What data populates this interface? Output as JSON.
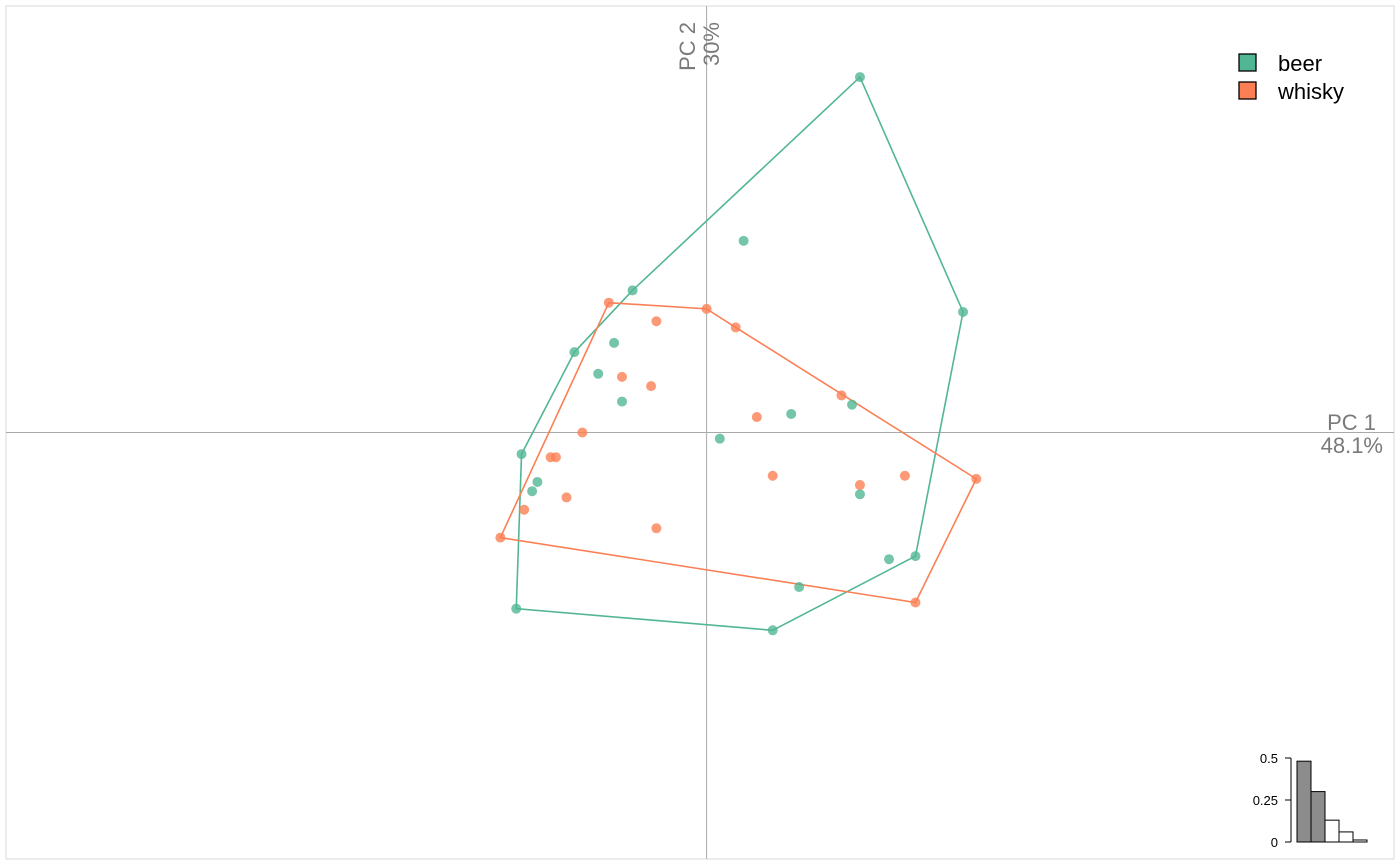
{
  "chart_data": {
    "type": "scatter",
    "title": "",
    "xlim": [
      -2.65,
      2.6
    ],
    "ylim": [
      -1.38,
      1.38
    ],
    "x_axis": {
      "name": "PC 1",
      "percent": "48.1%"
    },
    "y_axis": {
      "name": "PC 2",
      "percent": "30%"
    },
    "colors": {
      "beer": "#52b694",
      "whisky": "#fb7f55"
    },
    "legend_position": "top-right",
    "grid": false,
    "series": [
      {
        "name": "beer",
        "color": "#52b694",
        "points": [
          [
            0.58,
            1.15
          ],
          [
            0.97,
            0.39
          ],
          [
            -0.28,
            0.46
          ],
          [
            -0.5,
            0.26
          ],
          [
            -0.7,
            -0.07
          ],
          [
            -0.72,
            -0.57
          ],
          [
            0.25,
            -0.64
          ],
          [
            0.79,
            -0.4
          ],
          [
            0.69,
            -0.41
          ],
          [
            0.58,
            -0.2
          ],
          [
            0.14,
            0.62
          ],
          [
            -0.35,
            0.29
          ],
          [
            -0.41,
            0.19
          ],
          [
            -0.32,
            0.1
          ],
          [
            0.32,
            0.06
          ],
          [
            0.05,
            -0.02
          ],
          [
            -0.64,
            -0.16
          ],
          [
            -0.66,
            -0.19
          ],
          [
            0.55,
            0.09
          ],
          [
            0.35,
            -0.5
          ]
        ],
        "hull": [
          [
            0.58,
            1.15
          ],
          [
            0.97,
            0.39
          ],
          [
            0.79,
            -0.4
          ],
          [
            0.25,
            -0.64
          ],
          [
            -0.72,
            -0.57
          ],
          [
            -0.7,
            -0.07
          ],
          [
            -0.5,
            0.26
          ],
          [
            -0.28,
            0.46
          ]
        ]
      },
      {
        "name": "whisky",
        "color": "#fb7f55",
        "points": [
          [
            -0.37,
            0.42
          ],
          [
            0.0,
            0.4
          ],
          [
            0.11,
            0.34
          ],
          [
            1.02,
            -0.15
          ],
          [
            0.79,
            -0.55
          ],
          [
            -0.78,
            -0.34
          ],
          [
            -0.19,
            0.36
          ],
          [
            -0.32,
            0.18
          ],
          [
            -0.21,
            0.15
          ],
          [
            -0.47,
            0.0
          ],
          [
            -0.59,
            -0.08
          ],
          [
            -0.57,
            -0.08
          ],
          [
            -0.53,
            -0.21
          ],
          [
            -0.69,
            -0.25
          ],
          [
            -0.19,
            -0.31
          ],
          [
            0.19,
            0.05
          ],
          [
            0.25,
            -0.14
          ],
          [
            0.51,
            0.12
          ],
          [
            0.58,
            -0.17
          ],
          [
            0.75,
            -0.14
          ]
        ],
        "hull": [
          [
            -0.37,
            0.42
          ],
          [
            0.0,
            0.4
          ],
          [
            0.11,
            0.34
          ],
          [
            1.02,
            -0.15
          ],
          [
            0.79,
            -0.55
          ],
          [
            -0.78,
            -0.34
          ]
        ]
      }
    ],
    "eigenvalues": {
      "ticks": [
        "0.5",
        "0.25",
        "0"
      ],
      "tick_values": [
        0.5,
        0.25,
        0
      ],
      "values": [
        0.481,
        0.3,
        0.13,
        0.06,
        0.012
      ],
      "shown_axes": 2,
      "ylim": [
        0,
        0.5
      ]
    }
  }
}
